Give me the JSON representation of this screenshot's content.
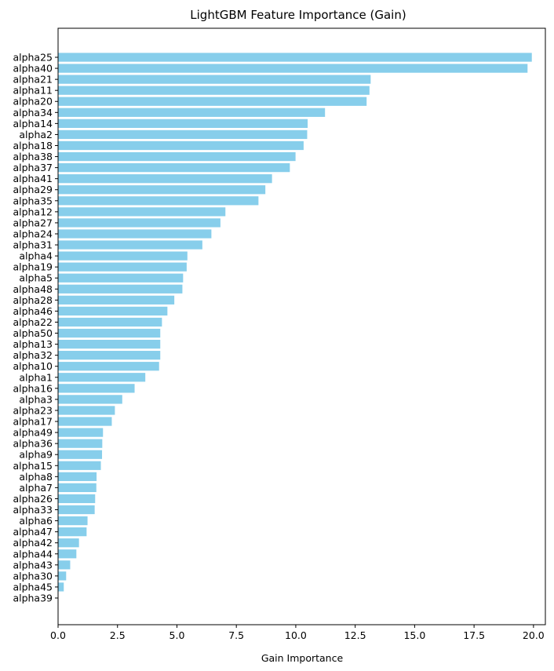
{
  "chart_data": {
    "type": "bar",
    "orientation": "horizontal",
    "title": "LightGBM Feature Importance (Gain)",
    "xlabel": "Gain Importance",
    "ylabel": "",
    "xlim": [
      0,
      20.5
    ],
    "xticks": [
      0.0,
      2.5,
      5.0,
      7.5,
      10.0,
      12.5,
      15.0,
      17.5,
      20.0
    ],
    "xtick_labels": [
      "0.0",
      "2.5",
      "5.0",
      "7.5",
      "10.0",
      "12.5",
      "15.0",
      "17.5",
      "20.0"
    ],
    "bar_color": "#87ceeb",
    "grid": false,
    "categories": [
      "alpha25",
      "alpha40",
      "alpha21",
      "alpha11",
      "alpha20",
      "alpha34",
      "alpha14",
      "alpha2",
      "alpha18",
      "alpha38",
      "alpha37",
      "alpha41",
      "alpha29",
      "alpha35",
      "alpha12",
      "alpha27",
      "alpha24",
      "alpha31",
      "alpha4",
      "alpha19",
      "alpha5",
      "alpha48",
      "alpha28",
      "alpha46",
      "alpha22",
      "alpha50",
      "alpha13",
      "alpha32",
      "alpha10",
      "alpha1",
      "alpha16",
      "alpha3",
      "alpha23",
      "alpha17",
      "alpha49",
      "alpha36",
      "alpha9",
      "alpha15",
      "alpha8",
      "alpha7",
      "alpha26",
      "alpha33",
      "alpha6",
      "alpha47",
      "alpha42",
      "alpha44",
      "alpha43",
      "alpha30",
      "alpha45",
      "alpha39"
    ],
    "values": [
      19.93,
      19.75,
      13.15,
      13.1,
      12.98,
      11.23,
      10.5,
      10.48,
      10.33,
      9.99,
      9.75,
      9.0,
      8.72,
      8.43,
      7.04,
      6.83,
      6.45,
      6.07,
      5.44,
      5.41,
      5.26,
      5.23,
      4.89,
      4.6,
      4.37,
      4.3,
      4.3,
      4.3,
      4.25,
      3.67,
      3.22,
      2.7,
      2.39,
      2.26,
      1.89,
      1.86,
      1.85,
      1.8,
      1.62,
      1.61,
      1.56,
      1.54,
      1.24,
      1.2,
      0.88,
      0.77,
      0.51,
      0.34,
      0.24,
      0.0
    ]
  }
}
